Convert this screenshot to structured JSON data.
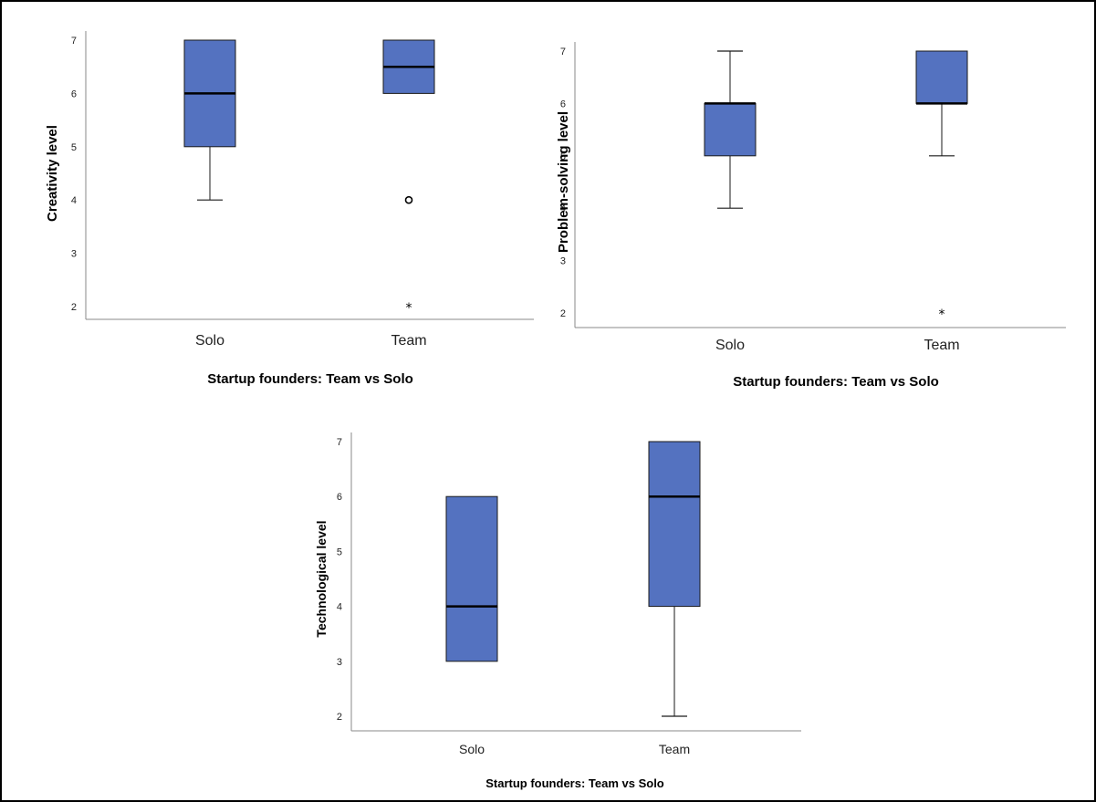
{
  "colors": {
    "box_fill": "#5472c0",
    "box_stroke": "#1a1a1a",
    "axis": "#888888",
    "median": "#000000"
  },
  "chart_data": [
    {
      "type": "box",
      "xlabel": "Startup founders: Team vs Solo",
      "ylabel": "Creativity level",
      "ylim": [
        2,
        7
      ],
      "yticks": [
        "2",
        "3",
        "4",
        "5",
        "6",
        "7"
      ],
      "categories": [
        "Solo",
        "Team"
      ],
      "boxes": [
        {
          "category": "Solo",
          "min": 4,
          "q1": 5,
          "median": 6,
          "q3": 7,
          "max": 7,
          "outliers": [],
          "extremes": []
        },
        {
          "category": "Team",
          "min": 6,
          "q1": 6,
          "median": 6.5,
          "q3": 7,
          "max": 7,
          "outliers": [
            4
          ],
          "extremes": [
            2
          ]
        }
      ]
    },
    {
      "type": "box",
      "xlabel": "Startup founders: Team vs Solo",
      "ylabel": "Problem-solving level",
      "ylim": [
        2,
        7
      ],
      "yticks": [
        "2",
        "3",
        "4",
        "5",
        "6",
        "7"
      ],
      "categories": [
        "Solo",
        "Team"
      ],
      "boxes": [
        {
          "category": "Solo",
          "min": 4,
          "q1": 5,
          "median": 6,
          "q3": 6,
          "max": 7,
          "outliers": [],
          "extremes": []
        },
        {
          "category": "Team",
          "min": 5,
          "q1": 6,
          "median": 6,
          "q3": 7,
          "max": 7,
          "outliers": [],
          "extremes": [
            2
          ]
        }
      ]
    },
    {
      "type": "box",
      "xlabel": "Startup founders: Team vs Solo",
      "ylabel": "Technological level",
      "ylim": [
        2,
        7
      ],
      "yticks": [
        "2",
        "3",
        "4",
        "5",
        "6",
        "7"
      ],
      "categories": [
        "Solo",
        "Team"
      ],
      "boxes": [
        {
          "category": "Solo",
          "min": 3,
          "q1": 3,
          "median": 4,
          "q3": 6,
          "max": 6,
          "outliers": [],
          "extremes": []
        },
        {
          "category": "Team",
          "min": 2,
          "q1": 4,
          "median": 6,
          "q3": 7,
          "max": 7,
          "outliers": [],
          "extremes": []
        }
      ]
    }
  ]
}
